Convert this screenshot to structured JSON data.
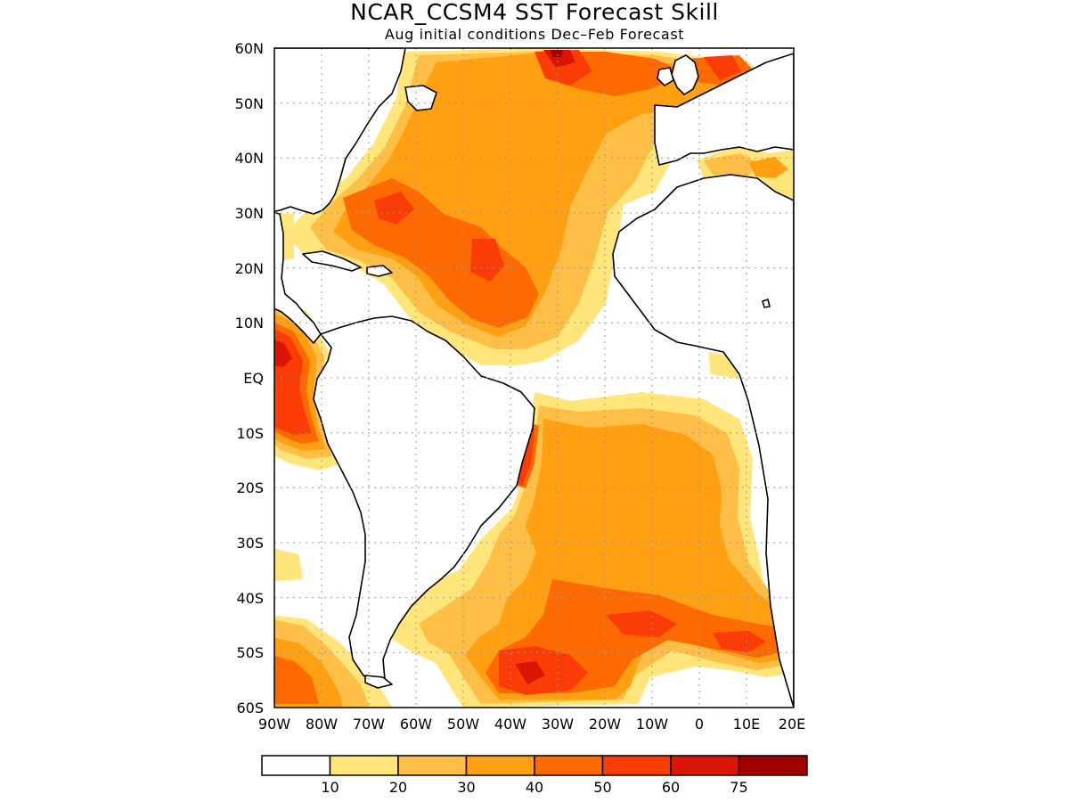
{
  "title": "NCAR_CCSM4 SST Forecast Skill",
  "subtitle": "Aug initial conditions   Dec–Feb Forecast",
  "map": {
    "type": "contour-fill",
    "lon_range": [
      -90,
      20
    ],
    "lat_range": [
      -60,
      60
    ],
    "grid": true,
    "lat_ticks": [
      "60N",
      "50N",
      "40N",
      "30N",
      "20N",
      "10N",
      "EQ",
      "10S",
      "20S",
      "30S",
      "40S",
      "50S",
      "60S"
    ],
    "lon_ticks": [
      "90W",
      "80W",
      "70W",
      "60W",
      "50W",
      "40W",
      "30W",
      "20W",
      "10W",
      "0",
      "10E",
      "20E"
    ]
  },
  "colorbar": {
    "colors": [
      "#ffffff",
      "#ffe57a",
      "#ffbe45",
      "#ff9f12",
      "#ff6a00",
      "#fa3c06",
      "#dc1606",
      "#a00000"
    ],
    "labels": [
      "10",
      "20",
      "30",
      "40",
      "50",
      "60",
      "75"
    ],
    "levels": [
      0,
      10,
      20,
      30,
      40,
      50,
      60,
      75,
      100
    ]
  },
  "colors": {
    "c10": "#ffe57a",
    "c20": "#ffbe45",
    "c30": "#ff9f12",
    "c40": "#ff6a00",
    "c50": "#fa3c06",
    "c60": "#dc1606",
    "c75": "#a00000"
  }
}
